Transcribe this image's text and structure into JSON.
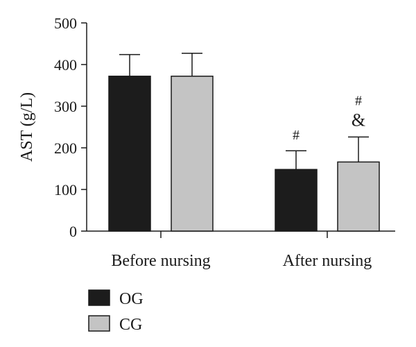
{
  "chart_data": {
    "type": "bar",
    "ylabel": "AST (g/L)",
    "xlabel": "",
    "title": "",
    "ylim": [
      0,
      500
    ],
    "yticks": [
      0,
      100,
      200,
      300,
      400,
      500
    ],
    "categories": [
      "Before nursing",
      "After nursing"
    ],
    "series": [
      {
        "name": "OG",
        "color": "#1c1c1c",
        "values": [
          372,
          148
        ],
        "errors": [
          52,
          45
        ]
      },
      {
        "name": "CG",
        "color": "#c4c4c4",
        "values": [
          372,
          166
        ],
        "errors": [
          55,
          60
        ]
      }
    ],
    "annotations": [
      {
        "category": "After nursing",
        "series": "OG",
        "lines": [
          "#"
        ]
      },
      {
        "category": "After nursing",
        "series": "CG",
        "lines": [
          "#",
          "&"
        ]
      }
    ],
    "legend": {
      "position": "bottom-left"
    },
    "grid": false
  }
}
